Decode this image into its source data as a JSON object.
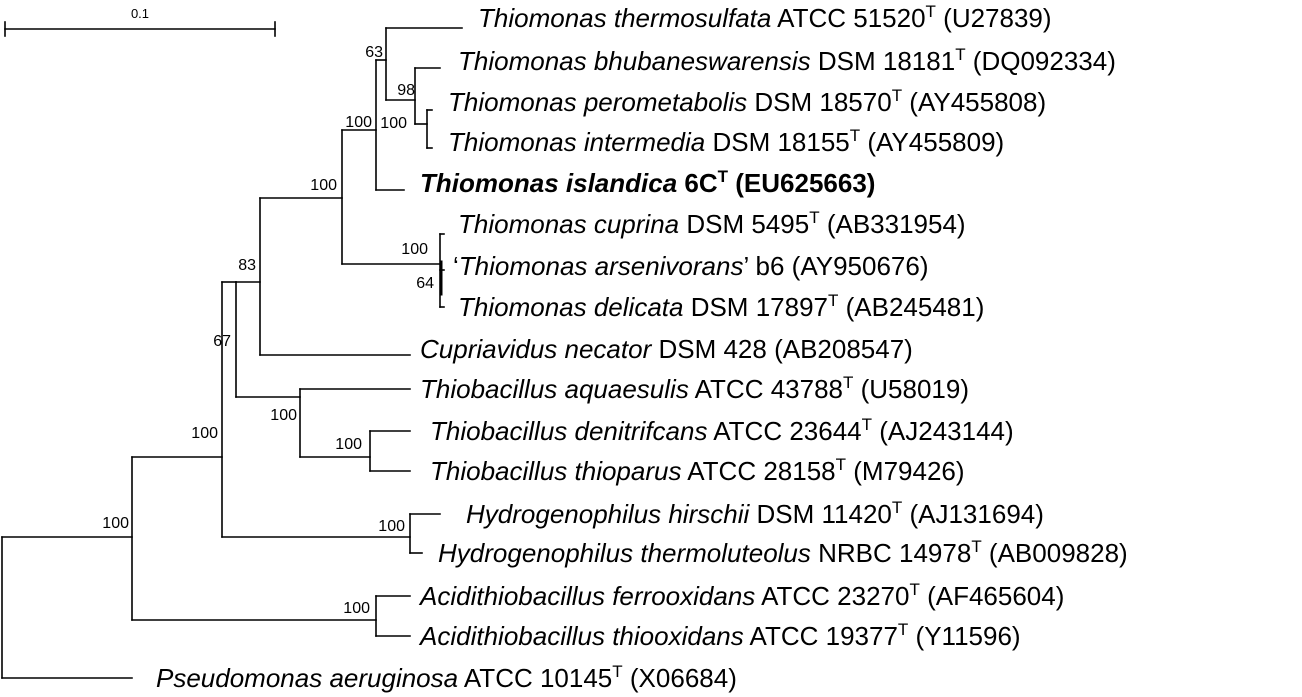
{
  "scale_bar": {
    "label": "0.1"
  },
  "taxa": [
    {
      "species": "Thiomonas thermosulfata",
      "strain": "ATCC 51520",
      "type_strain": true,
      "accession": "(U27839)"
    },
    {
      "species": "Thiomonas bhubaneswarensis",
      "strain": "DSM 18181",
      "type_strain": true,
      "accession": "(DQ092334)"
    },
    {
      "species": "Thiomonas perometabolis",
      "strain": "DSM 18570",
      "type_strain": true,
      "accession": "(AY455808)"
    },
    {
      "species": "Thiomonas intermedia",
      "strain": "DSM 18155",
      "type_strain": true,
      "accession": "(AY455809)"
    },
    {
      "species": "Thiomonas islandica",
      "strain": "6C",
      "type_strain": true,
      "accession": "(EU625663)",
      "highlight": true
    },
    {
      "species": "Thiomonas cuprina",
      "strain": "DSM 5495",
      "type_strain": true,
      "accession": "(AB331954)"
    },
    {
      "species": "Thiomonas arsenivorans",
      "strain": "b6",
      "type_strain": false,
      "accession": "(AY950676)",
      "quoted": true
    },
    {
      "species": "Thiomonas delicata",
      "strain": "DSM 17897",
      "type_strain": true,
      "accession": "(AB245481)"
    },
    {
      "species": "Cupriavidus necator",
      "strain": "DSM 428",
      "type_strain": false,
      "accession": "(AB208547)"
    },
    {
      "species": "Thiobacillus aquaesulis",
      "strain": "ATCC 43788",
      "type_strain": true,
      "accession": "(U58019)"
    },
    {
      "species": "Thiobacillus denitrifcans",
      "strain": "ATCC 23644",
      "type_strain": true,
      "accession": "(AJ243144)"
    },
    {
      "species": "Thiobacillus thioparus",
      "strain": "ATCC  28158",
      "type_strain": true,
      "accession": "(M79426)"
    },
    {
      "species": "Hydrogenophilus hirschii",
      "strain": "DSM 11420",
      "type_strain": true,
      "accession": "(AJ131694)"
    },
    {
      "species": "Hydrogenophilus thermoluteolus",
      "strain": "NRBC 14978",
      "type_strain": true,
      "accession": "(AB009828)"
    },
    {
      "species": "Acidithiobacillus ferrooxidans",
      "strain": "ATCC 23270",
      "type_strain": true,
      "accession": "(AF465604)"
    },
    {
      "species": "Acidithiobacillus thiooxidans",
      "strain": "ATCC 19377",
      "type_strain": true,
      "accession": "(Y11596)"
    },
    {
      "species": "Pseudomonas aeruginosa",
      "strain": "ATCC 10145",
      "type_strain": true,
      "accession": "(X06684)"
    }
  ],
  "bootstrap_values": [
    "63",
    "100",
    "98",
    "100",
    "100",
    "100",
    "64",
    "83",
    "67",
    "100",
    "100",
    "100",
    "100",
    "100",
    "100"
  ]
}
